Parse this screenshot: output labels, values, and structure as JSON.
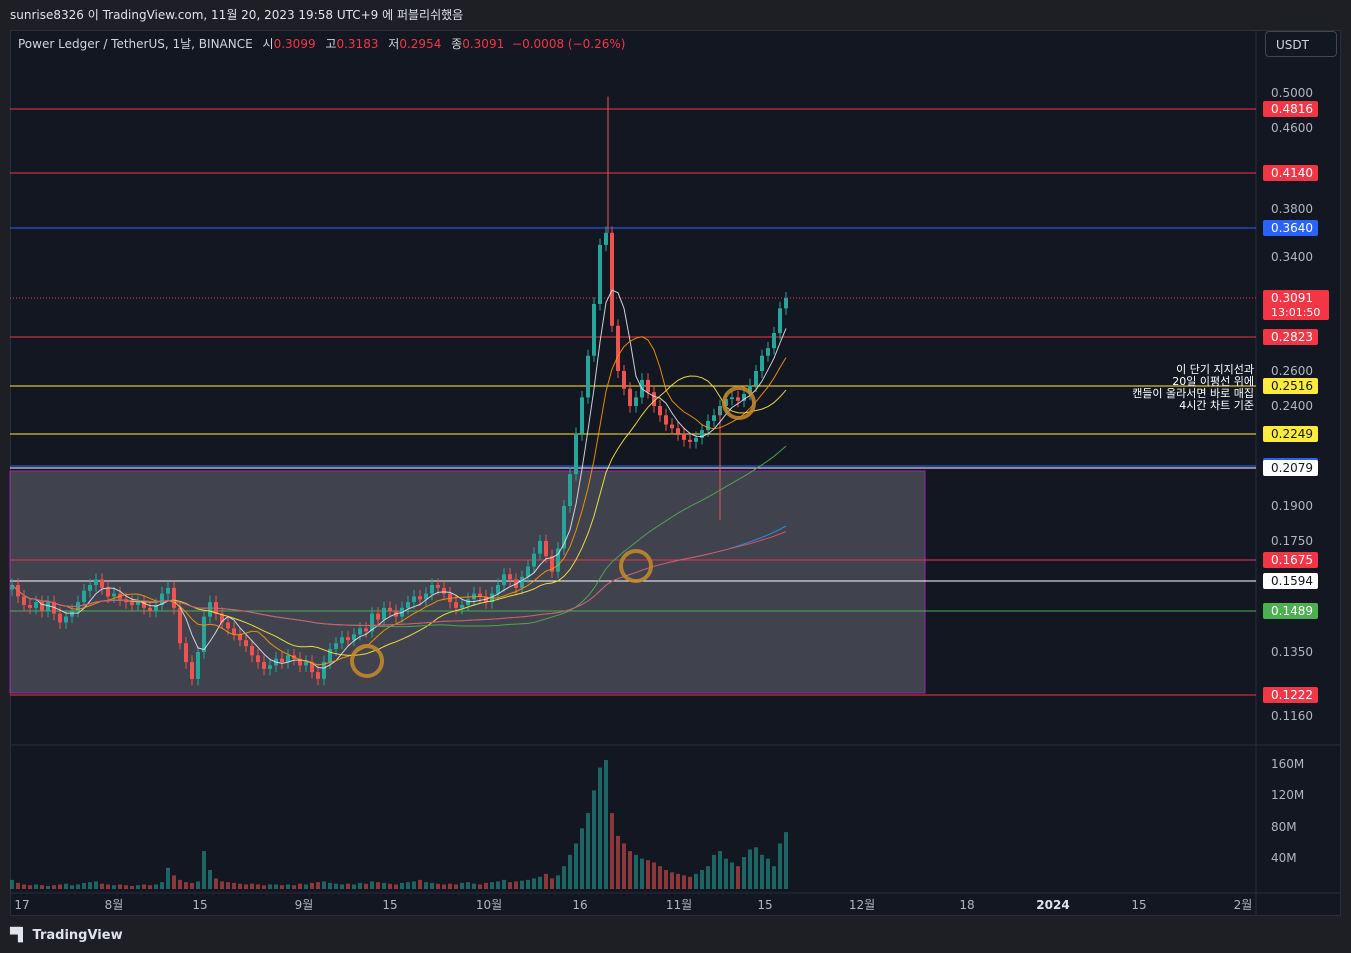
{
  "header": {
    "publish_line": "sunrise8326 이 TradingView.com, 11월 20, 2023 19:58 UTC+9 에 퍼블리쉬했음"
  },
  "legend": {
    "symbol": "Power Ledger / TetherUS, 1날, BINANCE",
    "open_label": "시",
    "open": "0.3099",
    "high_label": "고",
    "high": "0.3183",
    "low_label": "저",
    "low": "0.2954",
    "close_label": "종",
    "close": "0.3091",
    "change": "−0.0008 (−0.26%)"
  },
  "currency_button": "USDT",
  "annotation": [
    "이 단기 지지선과",
    "20일 이평선 위에",
    "캔들이 올라서면 바로 매집",
    "4시간 차트 기준"
  ],
  "footer": {
    "brand": "TradingView"
  },
  "colors": {
    "up": "#26a69a",
    "down": "#ef5350",
    "background": "#131722"
  },
  "chart_data": {
    "type": "candlestick",
    "price_axis_ticks": [
      "0.5000",
      "0.4600",
      "0.3800",
      "0.3400",
      "0.2600",
      "0.2400",
      "0.1900",
      "0.1750",
      "0.1350",
      "0.1160"
    ],
    "volume_axis_ticks": [
      "160M",
      "120M",
      "80M",
      "40M"
    ],
    "x_tick_labels": [
      "17",
      "8월",
      "15",
      "9월",
      "15",
      "10월",
      "16",
      "11월",
      "15",
      "12월",
      "18",
      "2024",
      "15",
      "2월"
    ],
    "price_levels": [
      {
        "value": "0.4816",
        "color": "#f23645"
      },
      {
        "value": "0.4140",
        "color": "#f23645"
      },
      {
        "value": "0.3640",
        "color": "#2962ff"
      },
      {
        "value": "0.2823",
        "color": "#f23645"
      },
      {
        "value": "0.2516",
        "color": "#ffeb3b"
      },
      {
        "value": "0.2249",
        "color": "#ffeb3b"
      },
      {
        "value": "0.2090",
        "color": "#2962ff"
      },
      {
        "value": "0.2079",
        "color": "#ffffff"
      },
      {
        "value": "0.1675",
        "color": "#f23645"
      },
      {
        "value": "0.1594",
        "color": "#ffffff"
      },
      {
        "value": "0.1489",
        "color": "#4caf50"
      },
      {
        "value": "0.1222",
        "color": "#f23645"
      }
    ],
    "last_price": "0.3091",
    "countdown": "13:01:50",
    "close_series": [
      0.158,
      0.154,
      0.151,
      0.15,
      0.152,
      0.149,
      0.152,
      0.148,
      0.145,
      0.147,
      0.149,
      0.152,
      0.156,
      0.158,
      0.16,
      0.157,
      0.154,
      0.155,
      0.153,
      0.152,
      0.151,
      0.152,
      0.15,
      0.149,
      0.151,
      0.155,
      0.157,
      0.15,
      0.138,
      0.132,
      0.127,
      0.135,
      0.147,
      0.152,
      0.148,
      0.145,
      0.143,
      0.141,
      0.139,
      0.137,
      0.134,
      0.132,
      0.13,
      0.131,
      0.133,
      0.132,
      0.134,
      0.133,
      0.131,
      0.132,
      0.129,
      0.127,
      0.132,
      0.136,
      0.138,
      0.14,
      0.139,
      0.141,
      0.143,
      0.142,
      0.148,
      0.146,
      0.15,
      0.149,
      0.147,
      0.15,
      0.152,
      0.154,
      0.153,
      0.155,
      0.158,
      0.157,
      0.155,
      0.152,
      0.15,
      0.151,
      0.153,
      0.155,
      0.154,
      0.152,
      0.155,
      0.158,
      0.162,
      0.16,
      0.157,
      0.161,
      0.165,
      0.17,
      0.175,
      0.169,
      0.163,
      0.172,
      0.19,
      0.205,
      0.225,
      0.245,
      0.27,
      0.305,
      0.35,
      0.36,
      0.29,
      0.26,
      0.25,
      0.24,
      0.245,
      0.255,
      0.248,
      0.24,
      0.235,
      0.23,
      0.228,
      0.225,
      0.222,
      0.221,
      0.223,
      0.227,
      0.232,
      0.235,
      0.24,
      0.244,
      0.245,
      0.243,
      0.247,
      0.252,
      0.26,
      0.27,
      0.275,
      0.285,
      0.302,
      0.309
    ],
    "volume_series": [
      12,
      8,
      6,
      5,
      6,
      5,
      4,
      5,
      6,
      7,
      5,
      6,
      8,
      9,
      10,
      7,
      6,
      5,
      6,
      5,
      4,
      5,
      6,
      5,
      6,
      9,
      28,
      18,
      12,
      9,
      8,
      10,
      50,
      25,
      14,
      10,
      9,
      8,
      7,
      6,
      7,
      6,
      5,
      6,
      6,
      5,
      6,
      5,
      7,
      6,
      8,
      9,
      10,
      8,
      7,
      6,
      7,
      6,
      8,
      7,
      10,
      9,
      8,
      7,
      6,
      8,
      9,
      10,
      12,
      9,
      8,
      7,
      6,
      7,
      6,
      8,
      9,
      7,
      6,
      8,
      9,
      10,
      12,
      9,
      10,
      11,
      12,
      14,
      16,
      20,
      14,
      18,
      30,
      45,
      60,
      80,
      100,
      130,
      160,
      170,
      100,
      70,
      60,
      50,
      45,
      40,
      38,
      35,
      30,
      25,
      22,
      20,
      18,
      16,
      20,
      25,
      30,
      45,
      50,
      40,
      35,
      30,
      42,
      52,
      55,
      45,
      40,
      30,
      60,
      75
    ]
  }
}
